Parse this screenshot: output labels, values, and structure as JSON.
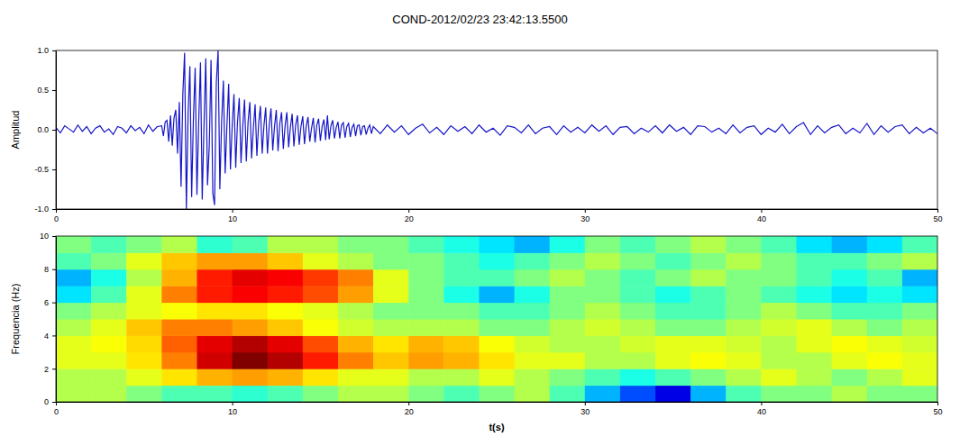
{
  "chart_data": [
    {
      "type": "line",
      "title": "COND-2012/02/23 23:42:13.5500",
      "ylabel": "Amplitud",
      "color": "#1515c8",
      "xlim": [
        0,
        50
      ],
      "ylim": [
        -1,
        1
      ],
      "xticks": [
        0,
        10,
        20,
        30,
        40,
        50
      ],
      "yticks": [
        {
          "value": -1,
          "label": "-1.0"
        },
        {
          "value": -0.5,
          "label": "-0.5"
        },
        {
          "value": 0,
          "label": "0.0"
        },
        {
          "value": 0.5,
          "label": "0.5"
        },
        {
          "value": 1,
          "label": "1.0"
        }
      ],
      "x": [
        0,
        0.25,
        0.5,
        0.75,
        1,
        1.25,
        1.5,
        1.75,
        2,
        2.25,
        2.5,
        2.75,
        3,
        3.25,
        3.5,
        3.75,
        4,
        4.25,
        4.5,
        4.75,
        5,
        5.25,
        5.5,
        5.75,
        6,
        6.1,
        6.2,
        6.3,
        6.4,
        6.5,
        6.6,
        6.7,
        6.8,
        6.9,
        7,
        7.1,
        7.2,
        7.3,
        7.4,
        7.5,
        7.6,
        7.7,
        7.8,
        7.9,
        8,
        8.1,
        8.2,
        8.3,
        8.4,
        8.5,
        8.6,
        8.7,
        8.8,
        8.9,
        9,
        9.1,
        9.2,
        9.3,
        9.4,
        9.5,
        9.6,
        9.7,
        9.8,
        9.9,
        10,
        10.1,
        10.2,
        10.3,
        10.4,
        10.5,
        10.6,
        10.7,
        10.8,
        10.9,
        11,
        11.1,
        11.2,
        11.3,
        11.4,
        11.5,
        11.6,
        11.7,
        11.8,
        11.9,
        12,
        12.1,
        12.2,
        12.3,
        12.4,
        12.5,
        12.6,
        12.7,
        12.8,
        12.9,
        13,
        13.1,
        13.2,
        13.3,
        13.4,
        13.5,
        13.6,
        13.7,
        13.8,
        13.9,
        14,
        14.1,
        14.2,
        14.3,
        14.4,
        14.5,
        14.6,
        14.7,
        14.8,
        14.9,
        15,
        15.1,
        15.2,
        15.3,
        15.4,
        15.5,
        15.6,
        15.7,
        15.8,
        15.9,
        16,
        16.1,
        16.2,
        16.3,
        16.4,
        16.5,
        16.6,
        16.7,
        16.8,
        16.9,
        17,
        17.1,
        17.2,
        17.3,
        17.4,
        17.5,
        17.6,
        17.7,
        17.8,
        17.9,
        18,
        18.4,
        18.8,
        19.2,
        19.6,
        20,
        20.4,
        20.8,
        21.2,
        21.6,
        22,
        22.4,
        22.8,
        23.2,
        23.6,
        24,
        24.4,
        24.8,
        25.2,
        25.6,
        26,
        26.4,
        26.8,
        27.2,
        27.6,
        28,
        28.4,
        28.8,
        29.2,
        29.6,
        30,
        30.4,
        30.8,
        31.2,
        31.6,
        32,
        32.4,
        32.8,
        33.2,
        33.6,
        34,
        34.4,
        34.8,
        35.2,
        35.6,
        36,
        36.4,
        36.8,
        37.2,
        37.6,
        38,
        38.4,
        38.8,
        39.2,
        39.6,
        40,
        40.4,
        40.8,
        41.2,
        41.6,
        42,
        42.4,
        42.8,
        43.2,
        43.6,
        44,
        44.4,
        44.8,
        45.2,
        45.6,
        46,
        46.4,
        46.8,
        47.2,
        47.6,
        48,
        48.4,
        48.8,
        49.2,
        49.6,
        50
      ],
      "values": [
        0.03,
        -0.04,
        0.05,
        0.01,
        -0.03,
        0.06,
        -0.02,
        0.04,
        -0.05,
        0.02,
        0.05,
        -0.03,
        0.01,
        -0.06,
        0.04,
        0.02,
        -0.04,
        0.05,
        -0.01,
        0.03,
        -0.05,
        0.06,
        -0.02,
        0.04,
        0.05,
        -0.08,
        0.1,
        0.12,
        -0.15,
        0.18,
        -0.2,
        0.15,
        0.25,
        -0.3,
        0.35,
        -0.72,
        0.45,
        0.97,
        -1.0,
        0.2,
        0.8,
        -0.85,
        0.15,
        0.78,
        -0.82,
        0.1,
        0.85,
        -0.88,
        0.05,
        0.9,
        -0.7,
        -0.2,
        0.88,
        -0.8,
        -0.95,
        0.6,
        1.0,
        -0.75,
        0.1,
        0.62,
        -0.55,
        0.05,
        0.58,
        -0.5,
        0.05,
        0.45,
        -0.48,
        0.1,
        0.4,
        -0.42,
        0.05,
        0.38,
        -0.4,
        0.1,
        0.35,
        -0.36,
        0.02,
        0.32,
        -0.33,
        0.08,
        0.3,
        -0.3,
        0.05,
        0.28,
        -0.3,
        0.06,
        0.27,
        -0.26,
        0.04,
        0.25,
        -0.27,
        0.08,
        0.22,
        -0.24,
        0.05,
        0.22,
        -0.22,
        0.03,
        0.2,
        -0.21,
        0.06,
        0.18,
        -0.19,
        0.04,
        0.17,
        -0.18,
        0.05,
        0.16,
        -0.15,
        0.02,
        0.15,
        -0.16,
        0.06,
        0.14,
        -0.14,
        0.04,
        0.13,
        -0.13,
        0.18,
        -0.12,
        0.05,
        0.12,
        -0.11,
        0.03,
        0.1,
        -0.11,
        0.06,
        0.09,
        -0.1,
        0.04,
        0.08,
        -0.09,
        0.03,
        0.07,
        -0.08,
        0.05,
        0.06,
        -0.07,
        0.04,
        0.05,
        -0.06,
        0.02,
        0.06,
        -0.05,
        0.04,
        -0.05,
        0.06,
        -0.03,
        0.05,
        -0.06,
        0.02,
        0.07,
        -0.04,
        0.03,
        -0.06,
        0.05,
        -0.02,
        0.04,
        -0.05,
        0.06,
        -0.03,
        0.02,
        -0.07,
        0.05,
        0.03,
        -0.04,
        0.06,
        -0.05,
        0.02,
        0.04,
        -0.06,
        0.05,
        -0.03,
        0.03,
        -0.04,
        0.06,
        -0.02,
        0.05,
        -0.06,
        0.03,
        0.04,
        -0.05,
        0.02,
        -0.03,
        0.05,
        -0.04,
        0.06,
        -0.02,
        0.03,
        -0.06,
        0.05,
        0.04,
        -0.03,
        0.02,
        -0.05,
        0.06,
        -0.04,
        0.03,
        0.05,
        -0.06,
        0.02,
        -0.03,
        0.07,
        -0.05,
        0.04,
        0.09,
        -0.06,
        0.05,
        -0.04,
        0.03,
        0.06,
        -0.05,
        0.02,
        -0.04,
        0.08,
        -0.06,
        0.05,
        -0.03,
        0.04,
        0.06,
        -0.05,
        0.03,
        -0.04,
        0.02,
        -0.05
      ]
    },
    {
      "type": "heatmap",
      "xlabel": "t(s)",
      "ylabel": "Frequencia (Hz)",
      "xlim": [
        0,
        50
      ],
      "ylim": [
        0,
        10
      ],
      "zlim": [
        0,
        1
      ],
      "xticks": [
        0,
        10,
        20,
        30,
        40,
        50
      ],
      "yticks": [
        0,
        2,
        4,
        6,
        8,
        10
      ],
      "x": [
        1,
        3,
        5,
        7,
        9,
        11,
        13,
        15,
        17,
        19,
        21,
        23,
        25,
        27,
        29,
        31,
        33,
        35,
        37,
        39,
        41,
        43,
        45,
        47,
        49
      ],
      "y": [
        0.5,
        1.5,
        2.5,
        3.5,
        4.5,
        5.5,
        6.5,
        7.5,
        8.5,
        9.5
      ],
      "values": [
        [
          0.55,
          0.55,
          0.5,
          0.45,
          0.45,
          0.42,
          0.45,
          0.5,
          0.55,
          0.55,
          0.5,
          0.45,
          0.5,
          0.55,
          0.45,
          0.3,
          0.2,
          0.1,
          0.3,
          0.45,
          0.5,
          0.5,
          0.55,
          0.5,
          0.5
        ],
        [
          0.55,
          0.55,
          0.6,
          0.65,
          0.7,
          0.72,
          0.7,
          0.65,
          0.6,
          0.6,
          0.55,
          0.55,
          0.6,
          0.55,
          0.5,
          0.45,
          0.4,
          0.45,
          0.5,
          0.55,
          0.6,
          0.55,
          0.5,
          0.55,
          0.6
        ],
        [
          0.6,
          0.6,
          0.65,
          0.75,
          0.92,
          1.0,
          0.95,
          0.85,
          0.75,
          0.68,
          0.72,
          0.7,
          0.65,
          0.6,
          0.6,
          0.55,
          0.55,
          0.6,
          0.62,
          0.6,
          0.55,
          0.55,
          0.6,
          0.62,
          0.6
        ],
        [
          0.6,
          0.62,
          0.66,
          0.78,
          0.9,
          0.95,
          0.9,
          0.8,
          0.7,
          0.65,
          0.7,
          0.68,
          0.62,
          0.58,
          0.55,
          0.55,
          0.58,
          0.6,
          0.6,
          0.58,
          0.55,
          0.6,
          0.62,
          0.6,
          0.58
        ],
        [
          0.55,
          0.6,
          0.68,
          0.75,
          0.75,
          0.72,
          0.68,
          0.62,
          0.58,
          0.55,
          0.55,
          0.55,
          0.5,
          0.5,
          0.55,
          0.58,
          0.55,
          0.5,
          0.5,
          0.55,
          0.58,
          0.6,
          0.55,
          0.5,
          0.55
        ],
        [
          0.5,
          0.55,
          0.6,
          0.62,
          0.65,
          0.65,
          0.62,
          0.6,
          0.55,
          0.5,
          0.5,
          0.5,
          0.45,
          0.45,
          0.5,
          0.55,
          0.5,
          0.45,
          0.45,
          0.5,
          0.55,
          0.5,
          0.45,
          0.45,
          0.5
        ],
        [
          0.35,
          0.45,
          0.6,
          0.75,
          0.85,
          0.88,
          0.85,
          0.8,
          0.72,
          0.6,
          0.5,
          0.4,
          0.3,
          0.4,
          0.5,
          0.5,
          0.45,
          0.4,
          0.45,
          0.5,
          0.45,
          0.4,
          0.35,
          0.4,
          0.35
        ],
        [
          0.3,
          0.4,
          0.55,
          0.7,
          0.85,
          0.9,
          0.88,
          0.82,
          0.75,
          0.6,
          0.5,
          0.45,
          0.45,
          0.5,
          0.55,
          0.5,
          0.45,
          0.5,
          0.55,
          0.5,
          0.5,
          0.45,
          0.4,
          0.45,
          0.3
        ],
        [
          0.45,
          0.5,
          0.6,
          0.68,
          0.72,
          0.72,
          0.68,
          0.6,
          0.55,
          0.5,
          0.5,
          0.45,
          0.4,
          0.45,
          0.5,
          0.55,
          0.5,
          0.45,
          0.5,
          0.55,
          0.5,
          0.45,
          0.45,
          0.5,
          0.55
        ],
        [
          0.5,
          0.45,
          0.5,
          0.55,
          0.42,
          0.45,
          0.55,
          0.55,
          0.5,
          0.5,
          0.45,
          0.4,
          0.35,
          0.3,
          0.4,
          0.5,
          0.45,
          0.5,
          0.55,
          0.5,
          0.45,
          0.35,
          0.3,
          0.35,
          0.45
        ]
      ]
    }
  ]
}
